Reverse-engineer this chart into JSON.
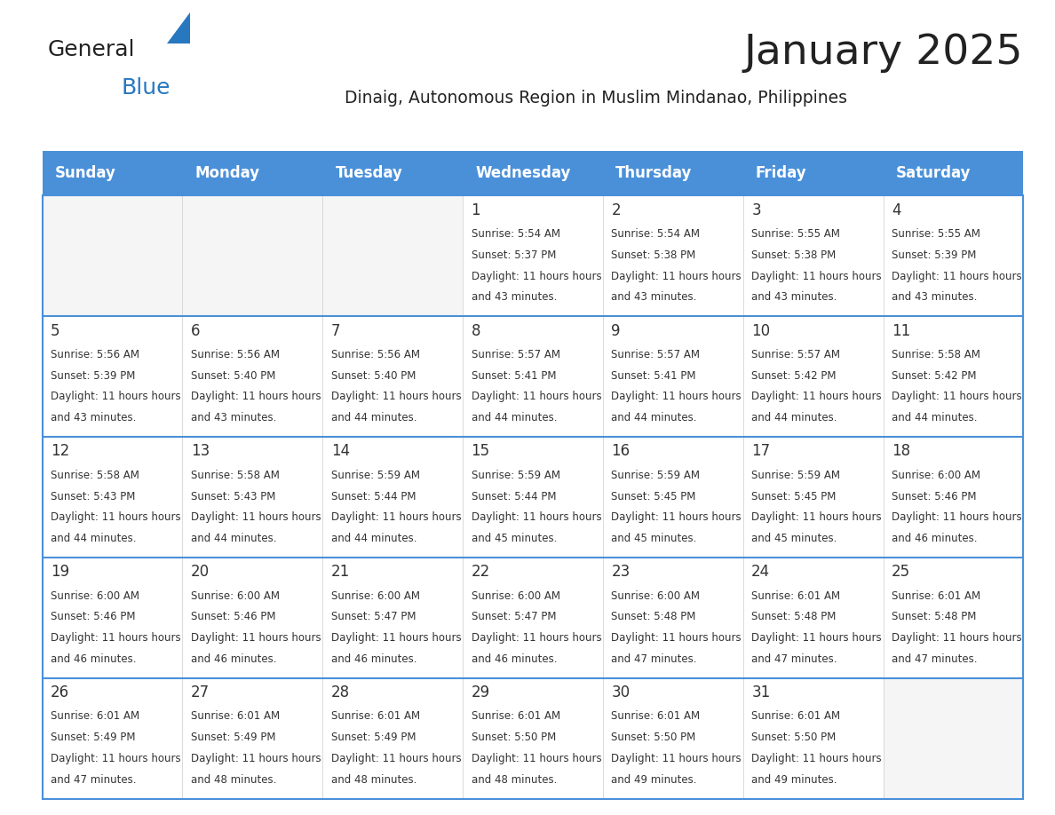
{
  "title": "January 2025",
  "subtitle": "Dinaig, Autonomous Region in Muslim Mindanao, Philippines",
  "days_of_week": [
    "Sunday",
    "Monday",
    "Tuesday",
    "Wednesday",
    "Thursday",
    "Friday",
    "Saturday"
  ],
  "header_bg": "#4a90d9",
  "text_color": "#333333",
  "title_color": "#222222",
  "calendar_data": [
    [
      null,
      null,
      null,
      {
        "day": 1,
        "sunrise": "5:54 AM",
        "sunset": "5:37 PM",
        "daylight": "11 hours and 43 minutes"
      },
      {
        "day": 2,
        "sunrise": "5:54 AM",
        "sunset": "5:38 PM",
        "daylight": "11 hours and 43 minutes"
      },
      {
        "day": 3,
        "sunrise": "5:55 AM",
        "sunset": "5:38 PM",
        "daylight": "11 hours and 43 minutes"
      },
      {
        "day": 4,
        "sunrise": "5:55 AM",
        "sunset": "5:39 PM",
        "daylight": "11 hours and 43 minutes"
      }
    ],
    [
      {
        "day": 5,
        "sunrise": "5:56 AM",
        "sunset": "5:39 PM",
        "daylight": "11 hours and 43 minutes"
      },
      {
        "day": 6,
        "sunrise": "5:56 AM",
        "sunset": "5:40 PM",
        "daylight": "11 hours and 43 minutes"
      },
      {
        "day": 7,
        "sunrise": "5:56 AM",
        "sunset": "5:40 PM",
        "daylight": "11 hours and 44 minutes"
      },
      {
        "day": 8,
        "sunrise": "5:57 AM",
        "sunset": "5:41 PM",
        "daylight": "11 hours and 44 minutes"
      },
      {
        "day": 9,
        "sunrise": "5:57 AM",
        "sunset": "5:41 PM",
        "daylight": "11 hours and 44 minutes"
      },
      {
        "day": 10,
        "sunrise": "5:57 AM",
        "sunset": "5:42 PM",
        "daylight": "11 hours and 44 minutes"
      },
      {
        "day": 11,
        "sunrise": "5:58 AM",
        "sunset": "5:42 PM",
        "daylight": "11 hours and 44 minutes"
      }
    ],
    [
      {
        "day": 12,
        "sunrise": "5:58 AM",
        "sunset": "5:43 PM",
        "daylight": "11 hours and 44 minutes"
      },
      {
        "day": 13,
        "sunrise": "5:58 AM",
        "sunset": "5:43 PM",
        "daylight": "11 hours and 44 minutes"
      },
      {
        "day": 14,
        "sunrise": "5:59 AM",
        "sunset": "5:44 PM",
        "daylight": "11 hours and 44 minutes"
      },
      {
        "day": 15,
        "sunrise": "5:59 AM",
        "sunset": "5:44 PM",
        "daylight": "11 hours and 45 minutes"
      },
      {
        "day": 16,
        "sunrise": "5:59 AM",
        "sunset": "5:45 PM",
        "daylight": "11 hours and 45 minutes"
      },
      {
        "day": 17,
        "sunrise": "5:59 AM",
        "sunset": "5:45 PM",
        "daylight": "11 hours and 45 minutes"
      },
      {
        "day": 18,
        "sunrise": "6:00 AM",
        "sunset": "5:46 PM",
        "daylight": "11 hours and 46 minutes"
      }
    ],
    [
      {
        "day": 19,
        "sunrise": "6:00 AM",
        "sunset": "5:46 PM",
        "daylight": "11 hours and 46 minutes"
      },
      {
        "day": 20,
        "sunrise": "6:00 AM",
        "sunset": "5:46 PM",
        "daylight": "11 hours and 46 minutes"
      },
      {
        "day": 21,
        "sunrise": "6:00 AM",
        "sunset": "5:47 PM",
        "daylight": "11 hours and 46 minutes"
      },
      {
        "day": 22,
        "sunrise": "6:00 AM",
        "sunset": "5:47 PM",
        "daylight": "11 hours and 46 minutes"
      },
      {
        "day": 23,
        "sunrise": "6:00 AM",
        "sunset": "5:48 PM",
        "daylight": "11 hours and 47 minutes"
      },
      {
        "day": 24,
        "sunrise": "6:01 AM",
        "sunset": "5:48 PM",
        "daylight": "11 hours and 47 minutes"
      },
      {
        "day": 25,
        "sunrise": "6:01 AM",
        "sunset": "5:48 PM",
        "daylight": "11 hours and 47 minutes"
      }
    ],
    [
      {
        "day": 26,
        "sunrise": "6:01 AM",
        "sunset": "5:49 PM",
        "daylight": "11 hours and 47 minutes"
      },
      {
        "day": 27,
        "sunrise": "6:01 AM",
        "sunset": "5:49 PM",
        "daylight": "11 hours and 48 minutes"
      },
      {
        "day": 28,
        "sunrise": "6:01 AM",
        "sunset": "5:49 PM",
        "daylight": "11 hours and 48 minutes"
      },
      {
        "day": 29,
        "sunrise": "6:01 AM",
        "sunset": "5:50 PM",
        "daylight": "11 hours and 48 minutes"
      },
      {
        "day": 30,
        "sunrise": "6:01 AM",
        "sunset": "5:50 PM",
        "daylight": "11 hours and 49 minutes"
      },
      {
        "day": 31,
        "sunrise": "6:01 AM",
        "sunset": "5:50 PM",
        "daylight": "11 hours and 49 minutes"
      },
      null
    ]
  ],
  "logo_general_color": "#222222",
  "logo_blue_color": "#2878c0",
  "fig_width": 11.88,
  "fig_height": 9.18
}
